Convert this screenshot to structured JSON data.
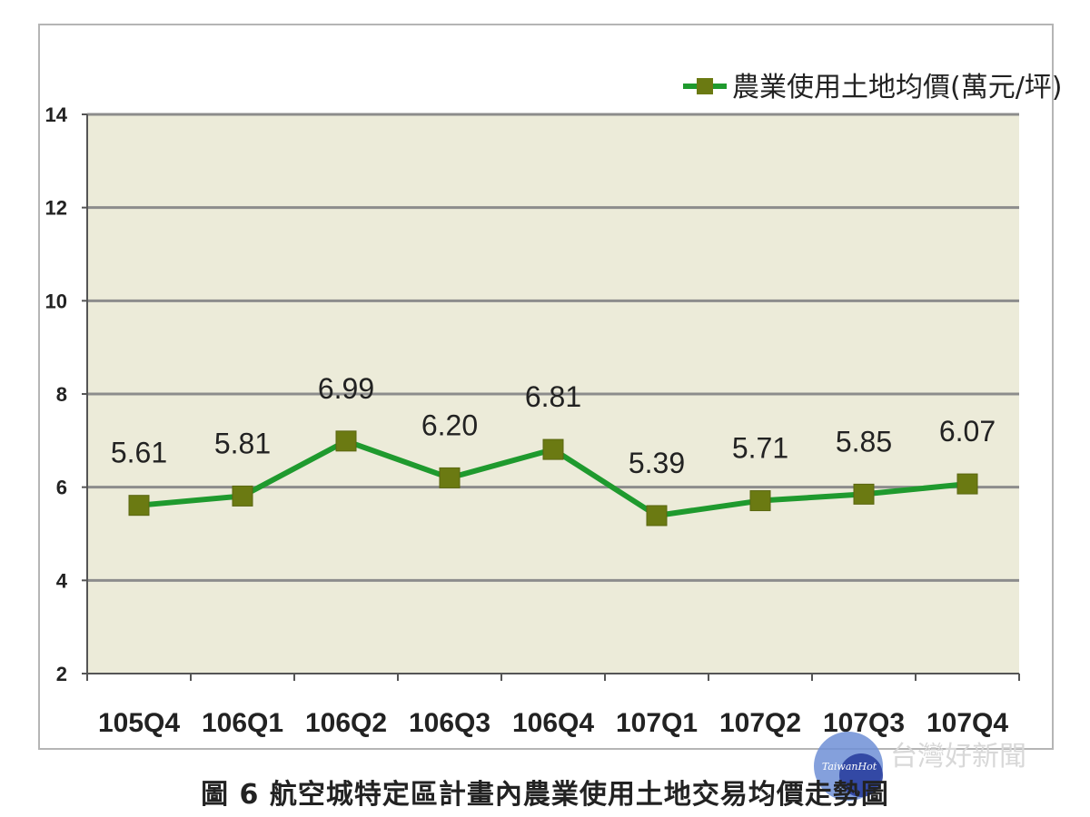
{
  "caption": "圖 6  航空城特定區計畫內農業使用土地交易均價走勢圖",
  "watermark": {
    "logo_text": "TaiwanHot",
    "cjk_text": "台灣好新聞"
  },
  "colors": {
    "line": "#1f9a2e",
    "marker": "#6b7a12",
    "plot_bg": "#ecebd9",
    "grid": "#8c8c8c"
  },
  "chart_data": {
    "type": "line",
    "categories": [
      "105Q4",
      "106Q1",
      "106Q2",
      "106Q3",
      "106Q4",
      "107Q1",
      "107Q2",
      "107Q3",
      "107Q4"
    ],
    "series": [
      {
        "name": "農業使用土地均價(萬元/坪)",
        "values": [
          5.61,
          5.81,
          6.99,
          6.2,
          6.81,
          5.39,
          5.71,
          5.85,
          6.07
        ]
      }
    ],
    "data_labels": [
      "5.61",
      "5.81",
      "6.99",
      "6.20",
      "6.81",
      "5.39",
      "5.71",
      "5.85",
      "6.07"
    ],
    "yticks": [
      "2",
      "4",
      "6",
      "8",
      "10",
      "12",
      "14"
    ],
    "ylim": [
      2,
      14
    ],
    "grid": true,
    "legend": "top-right",
    "marker": "square"
  }
}
